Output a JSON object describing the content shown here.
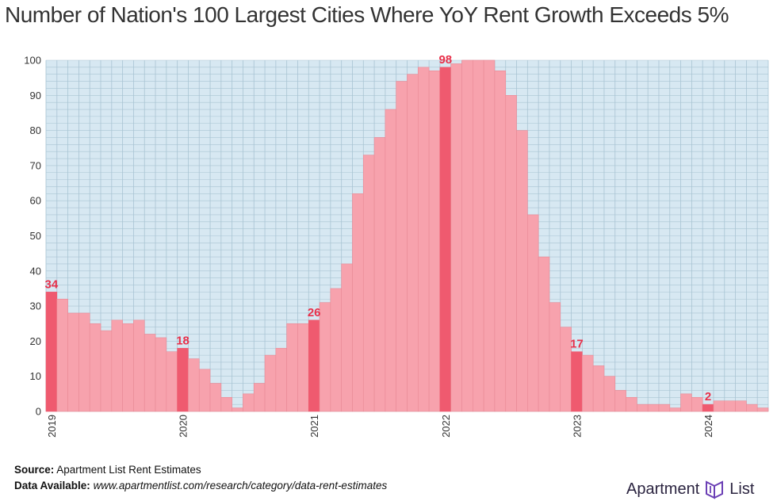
{
  "chart_data": {
    "type": "bar",
    "title": "Number of Nation's 100 Largest Cities Where YoY Rent Growth Exceeds 5%",
    "xlabel": "",
    "ylabel": "",
    "ylim": [
      0,
      100
    ],
    "yticks": [
      0,
      10,
      20,
      30,
      40,
      50,
      60,
      70,
      80,
      90,
      100
    ],
    "year_labels": [
      "2019",
      "2020",
      "2021",
      "2022",
      "2023",
      "2024"
    ],
    "start": "2019-01",
    "frequency": "monthly",
    "values": [
      34,
      32,
      28,
      28,
      25,
      23,
      26,
      25,
      26,
      22,
      21,
      17,
      18,
      15,
      12,
      8,
      4,
      1,
      5,
      8,
      16,
      18,
      25,
      25,
      26,
      31,
      35,
      42,
      62,
      73,
      78,
      86,
      94,
      96,
      98,
      97,
      98,
      99,
      100,
      100,
      100,
      97,
      90,
      80,
      56,
      44,
      31,
      24,
      17,
      16,
      13,
      10,
      6,
      4,
      2,
      2,
      2,
      1,
      5,
      4,
      2,
      3,
      3,
      3,
      2,
      1
    ],
    "highlighted": [
      {
        "label": "2019",
        "value": 34
      },
      {
        "label": "2020",
        "value": 18
      },
      {
        "label": "2021",
        "value": 26
      },
      {
        "label": "2022",
        "value": 98
      },
      {
        "label": "2023",
        "value": 17
      },
      {
        "label": "2024",
        "value": 2
      }
    ],
    "colors": {
      "background": "#d7e8f2",
      "grid": "#a9c4d3",
      "bar": "#f7a2ad",
      "bar_edge": "#e88995",
      "bar_highlight": "#ef5a6f",
      "label": "#e8304a",
      "axis_text": "#333333"
    }
  },
  "footer": {
    "source_label": "Source:",
    "source_text": "Apartment List Rent Estimates",
    "data_label": "Data Available:",
    "data_text": "www.apartmentlist.com/research/category/data-rent-estimates"
  },
  "logo": {
    "text_left": "Apartment",
    "text_right": "List",
    "icon": "apartment-list-logo-icon"
  }
}
